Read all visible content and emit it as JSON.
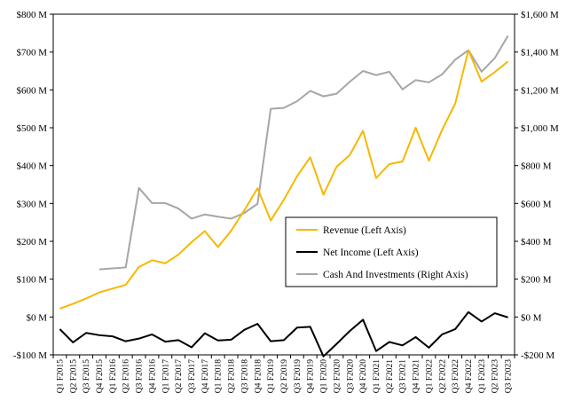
{
  "chart_data": {
    "type": "line",
    "categories": [
      "Q1 F2015",
      "Q2 F2015",
      "Q3 F2015",
      "Q4 F2015",
      "Q1 F2016",
      "Q2 F2016",
      "Q3 F2016",
      "Q4 F2016",
      "Q1 F2017",
      "Q2 F2017",
      "Q3 F2017",
      "Q4 F2017",
      "Q1 F2018",
      "Q2 F2018",
      "Q3 F2018",
      "Q4 F2018",
      "Q1 F2019",
      "Q2 F2019",
      "Q3 F2019",
      "Q4 F2019",
      "Q1 F2020",
      "Q2 F2020",
      "Q3 F2020",
      "Q4 F2020",
      "Q1 F2021",
      "Q2 F2021",
      "Q3 F2021",
      "Q4 F2021",
      "Q1 F2022",
      "Q2 F2022",
      "Q3 F2022",
      "Q4 F2022",
      "Q1 F2023",
      "Q2 F2023",
      "Q3 F2023"
    ],
    "left_axis": {
      "ylim": [
        -100,
        800
      ],
      "ticks": [
        "-$100 M",
        "$0 M",
        "$100 M",
        "$200 M",
        "$300 M",
        "$400 M",
        "$500 M",
        "$600 M",
        "$700 M",
        "$800 M"
      ],
      "tick_values": [
        -100,
        0,
        100,
        200,
        300,
        400,
        500,
        600,
        700,
        800
      ]
    },
    "right_axis": {
      "ylim": [
        -200,
        1600
      ],
      "ticks": [
        "-$200 M",
        "$0 M",
        "$200 M",
        "$400 M",
        "$600 M",
        "$800 M",
        "$1,000 M",
        "$1,200 M",
        "$1,400 M",
        "$1,600 M"
      ],
      "tick_values": [
        -200,
        0,
        200,
        400,
        600,
        800,
        1000,
        1200,
        1400,
        1600
      ]
    },
    "series": [
      {
        "name": "Revenue (Left Axis)",
        "axis": "left",
        "color": "#f5b800",
        "values": [
          22,
          35,
          49,
          65,
          75,
          85,
          132,
          150,
          142,
          165,
          198,
          227,
          185,
          228,
          282,
          340,
          255,
          310,
          372,
          422,
          323,
          397,
          428,
          492,
          367,
          404,
          411,
          500,
          413,
          494,
          564,
          705,
          622,
          647,
          675
        ]
      },
      {
        "name": "Net Income (Left Axis)",
        "axis": "left",
        "color": "#000000",
        "values": [
          -32,
          -67,
          -42,
          -48,
          -51,
          -64,
          -57,
          -46,
          -65,
          -61,
          -80,
          -43,
          -62,
          -60,
          -34,
          -18,
          -64,
          -61,
          -28,
          -26,
          -104,
          -71,
          -37,
          -7,
          -90,
          -66,
          -75,
          -53,
          -81,
          -46,
          -32,
          13,
          -12,
          10,
          -1
        ]
      },
      {
        "name": "Cash And Investments (Right Axis)",
        "axis": "right",
        "color": "#a6a6a6",
        "values": [
          null,
          null,
          null,
          252,
          257,
          262,
          682,
          602,
          602,
          573,
          520,
          542,
          530,
          520,
          550,
          598,
          1100,
          1105,
          1140,
          1195,
          1166,
          1180,
          1243,
          1300,
          1278,
          1296,
          1203,
          1252,
          1240,
          1282,
          1360,
          1410,
          1296,
          1368,
          1486
        ]
      }
    ],
    "grid": false,
    "legend": "center-right"
  }
}
